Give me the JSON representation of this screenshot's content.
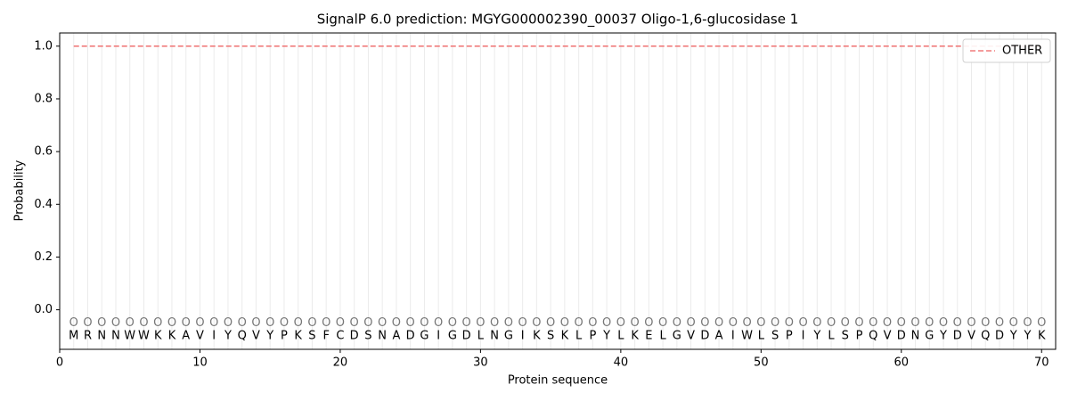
{
  "chart_data": {
    "type": "line",
    "title": "SignalP 6.0 prediction: MGYG000002390_00037 Oligo-1,6-glucosidase 1",
    "x_label": "Protein sequence",
    "y_label": "Probability",
    "x": [
      1,
      2,
      3,
      4,
      5,
      6,
      7,
      8,
      9,
      10,
      11,
      12,
      13,
      14,
      15,
      16,
      17,
      18,
      19,
      20,
      21,
      22,
      23,
      24,
      25,
      26,
      27,
      28,
      29,
      30,
      31,
      32,
      33,
      34,
      35,
      36,
      37,
      38,
      39,
      40,
      41,
      42,
      43,
      44,
      45,
      46,
      47,
      48,
      49,
      50,
      51,
      52,
      53,
      54,
      55,
      56,
      57,
      58,
      59,
      60,
      61,
      62,
      63,
      64,
      65,
      66,
      67,
      68,
      69,
      70
    ],
    "residues": [
      "M",
      "R",
      "N",
      "N",
      "W",
      "W",
      "K",
      "K",
      "A",
      "V",
      "I",
      "Y",
      "Q",
      "V",
      "Y",
      "P",
      "K",
      "S",
      "F",
      "C",
      "D",
      "S",
      "N",
      "A",
      "D",
      "G",
      "I",
      "G",
      "D",
      "L",
      "N",
      "G",
      "I",
      "K",
      "S",
      "K",
      "L",
      "P",
      "Y",
      "L",
      "K",
      "E",
      "L",
      "G",
      "V",
      "D",
      "A",
      "I",
      "W",
      "L",
      "S",
      "P",
      "I",
      "Y",
      "L",
      "S",
      "P",
      "Q",
      "V",
      "D",
      "N",
      "G",
      "Y",
      "D",
      "V",
      "Q",
      "D",
      "Y",
      "Y",
      "K"
    ],
    "region_labels": [
      "O",
      "O",
      "O",
      "O",
      "O",
      "O",
      "O",
      "O",
      "O",
      "O",
      "O",
      "O",
      "O",
      "O",
      "O",
      "O",
      "O",
      "O",
      "O",
      "O",
      "O",
      "O",
      "O",
      "O",
      "O",
      "O",
      "O",
      "O",
      "O",
      "O",
      "O",
      "O",
      "O",
      "O",
      "O",
      "O",
      "O",
      "O",
      "O",
      "O",
      "O",
      "O",
      "O",
      "O",
      "O",
      "O",
      "O",
      "O",
      "O",
      "O",
      "O",
      "O",
      "O",
      "O",
      "O",
      "O",
      "O",
      "O",
      "O",
      "O",
      "O",
      "O",
      "O",
      "O",
      "O",
      "O",
      "O",
      "O",
      "O",
      "O"
    ],
    "series": [
      {
        "name": "OTHER",
        "color": "#f07c7c",
        "dashed": true,
        "values": [
          1,
          1,
          1,
          1,
          1,
          1,
          1,
          1,
          1,
          1,
          1,
          1,
          1,
          1,
          1,
          1,
          1,
          1,
          1,
          1,
          1,
          1,
          1,
          1,
          1,
          1,
          1,
          1,
          1,
          1,
          1,
          1,
          1,
          1,
          1,
          1,
          1,
          1,
          1,
          1,
          1,
          1,
          1,
          1,
          1,
          1,
          1,
          1,
          1,
          1,
          1,
          1,
          1,
          1,
          1,
          1,
          1,
          1,
          1,
          1,
          1,
          1,
          1,
          1,
          1,
          1,
          1,
          1,
          1,
          1
        ]
      }
    ],
    "xlim": [
      0,
      71
    ],
    "ylim": [
      -0.15,
      1.05
    ],
    "xticks": [
      0,
      10,
      20,
      30,
      40,
      50,
      60,
      70
    ],
    "yticks": [
      {
        "value": 0,
        "label": "0.0"
      },
      {
        "value": 0.2,
        "label": "0.2"
      },
      {
        "value": 0.4,
        "label": "0.4"
      },
      {
        "value": 0.6,
        "label": "0.6"
      },
      {
        "value": 0.8,
        "label": "0.8"
      },
      {
        "value": 1,
        "label": "1.0"
      }
    ],
    "legend": "upper right",
    "grid": true
  }
}
